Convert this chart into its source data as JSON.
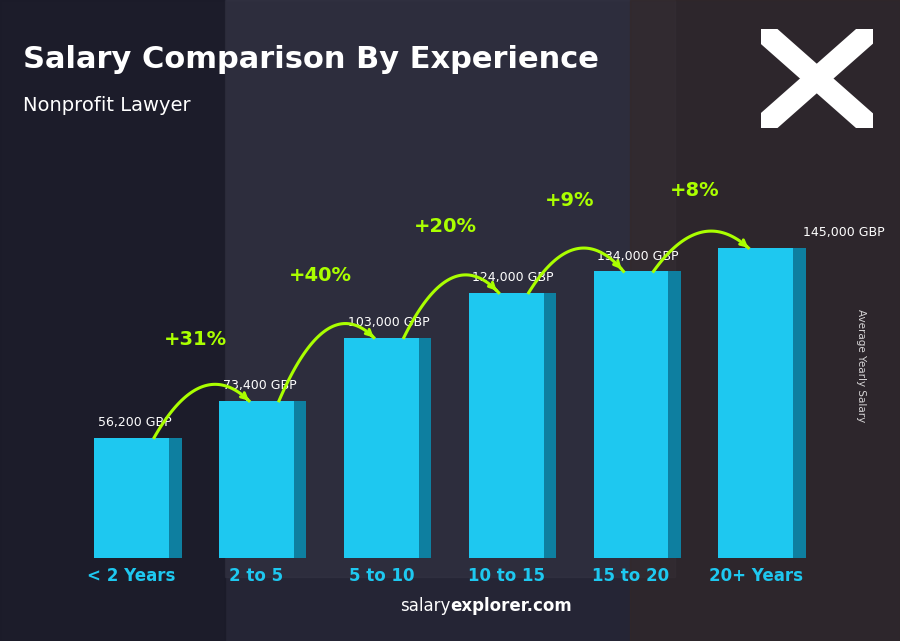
{
  "title": "Salary Comparison By Experience",
  "subtitle": "Nonprofit Lawyer",
  "categories": [
    "< 2 Years",
    "2 to 5",
    "5 to 10",
    "10 to 15",
    "15 to 20",
    "20+ Years"
  ],
  "values": [
    56200,
    73400,
    103000,
    124000,
    134000,
    145000
  ],
  "labels": [
    "56,200 GBP",
    "73,400 GBP",
    "103,000 GBP",
    "124,000 GBP",
    "134,000 GBP",
    "145,000 GBP"
  ],
  "pct_changes": [
    "+31%",
    "+40%",
    "+20%",
    "+9%",
    "+8%"
  ],
  "bar_color_face": "#1EC8F0",
  "bar_color_side": "#0E7FA0",
  "bar_color_top": "#5EDDFF",
  "bg_color": "#1a1a2e",
  "title_color": "#ffffff",
  "subtitle_color": "#ffffff",
  "xlabel_color": "#1EC8F0",
  "label_color": "#ffffff",
  "pct_color": "#aaff00",
  "arrow_color": "#aaff00",
  "watermark_salary": "salary",
  "watermark_rest": "explorer.com",
  "ylabel_text": "Average Yearly Salary",
  "ylim": [
    0,
    180000
  ],
  "flag_bg": "#1a5eb8",
  "flag_cross": "#ffffff"
}
